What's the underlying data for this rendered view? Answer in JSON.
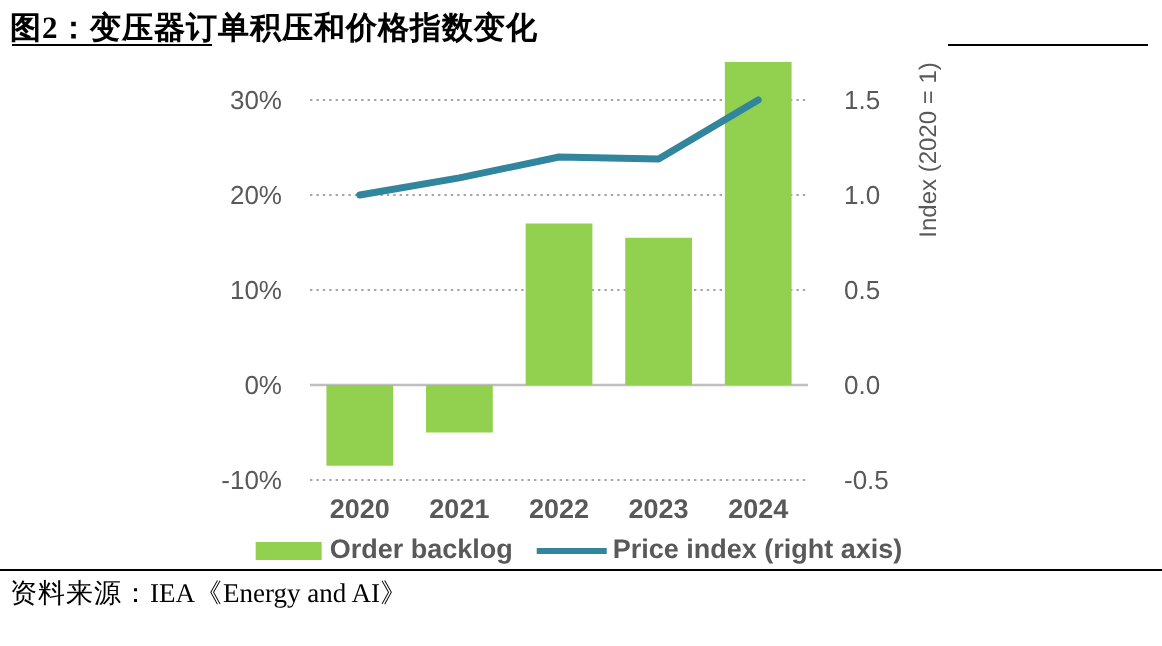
{
  "chart_data": {
    "type": "bar",
    "title": "图2：变压器订单积压和价格指数变化",
    "categories": [
      "2020",
      "2021",
      "2022",
      "2023",
      "2024"
    ],
    "series": [
      {
        "name": "Order backlog",
        "color": "#92d050",
        "values": [
          -8.5,
          -5,
          17,
          15.5,
          34
        ]
      },
      {
        "name": "Price index (right axis)",
        "type": "line",
        "axis": "y2",
        "color": "#31859c",
        "values": [
          1,
          1.09,
          1.2,
          1.19,
          1.5
        ]
      }
    ],
    "ylim": [
      -10,
      34
    ],
    "yticks": [
      {
        "value": -10,
        "label": "-10%"
      },
      {
        "value": 0,
        "label": "0%"
      },
      {
        "value": 10,
        "label": "10%"
      },
      {
        "value": 20,
        "label": "20%"
      },
      {
        "value": 30,
        "label": "30%"
      }
    ],
    "y2lim": [
      -0.5,
      1.7
    ],
    "y2ticks": [
      {
        "value": -0.5,
        "label": "-0.5"
      },
      {
        "value": 0,
        "label": "0.0"
      },
      {
        "value": 0.5,
        "label": "0.5"
      },
      {
        "value": 1,
        "label": "1.0"
      },
      {
        "value": 1.5,
        "label": "1.5"
      }
    ],
    "y2label": "Index (2020 = 1)",
    "grid": "y",
    "legend": "bottom",
    "annotations": [
      "资料来源：IEA《Energy and AI》"
    ]
  }
}
